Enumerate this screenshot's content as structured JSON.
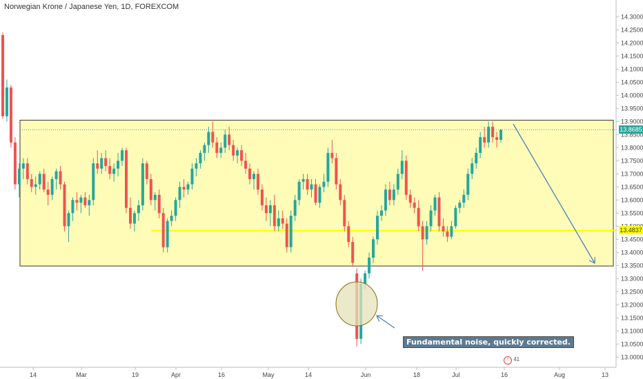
{
  "header": {
    "title": "Norwegian Krone / Japanese Yen, 1D, FOREXCOM"
  },
  "annotation": {
    "text": "Fundamental noise, quickly corrected."
  },
  "price_tags": {
    "last": "13.8685",
    "level": "13.4837"
  },
  "events": {
    "count": "41"
  },
  "colors": {
    "up": "#26a69a",
    "down": "#ef5350",
    "box_fill": "#fffcb8",
    "level_line": "#ffff00",
    "arrow": "#4a7fbf",
    "circle_fill": "#e3e2b8"
  },
  "chart_data": {
    "type": "candlestick",
    "yaxis": {
      "range": [
        12.985,
        14.335
      ],
      "ticks": [
        "14.3000",
        "14.2500",
        "14.2000",
        "14.1500",
        "14.1000",
        "14.0500",
        "14.0000",
        "13.9500",
        "13.9000",
        "13.8500",
        "13.8000",
        "13.7500",
        "13.7000",
        "13.6500",
        "13.6000",
        "13.5500",
        "13.5000",
        "13.4500",
        "13.4000",
        "13.3500",
        "13.3000",
        "13.2500",
        "13.2000",
        "13.1500",
        "13.1000",
        "13.0500",
        "13.0000"
      ]
    },
    "xaxis": {
      "ticks": [
        "14",
        "Mar",
        "19",
        "Apr",
        "16",
        "May",
        "14",
        "Jun",
        "18",
        "Jul",
        "16",
        "Aug",
        "13"
      ]
    },
    "range_box": {
      "top": 13.905,
      "bottom": 13.348
    },
    "level": 13.4837,
    "last_price": 13.8685,
    "candles": [
      [
        14.23,
        14.24,
        13.91,
        13.92
      ],
      [
        13.92,
        14.06,
        13.9,
        14.03
      ],
      [
        14.03,
        14.04,
        13.8,
        13.82
      ],
      [
        13.82,
        13.84,
        13.64,
        13.66
      ],
      [
        13.66,
        13.74,
        13.61,
        13.72
      ],
      [
        13.72,
        13.76,
        13.68,
        13.74
      ],
      [
        13.74,
        13.76,
        13.66,
        13.68
      ],
      [
        13.68,
        13.7,
        13.63,
        13.65
      ],
      [
        13.65,
        13.69,
        13.62,
        13.66
      ],
      [
        13.66,
        13.71,
        13.64,
        13.7
      ],
      [
        13.7,
        13.72,
        13.63,
        13.64
      ],
      [
        13.64,
        13.67,
        13.58,
        13.62
      ],
      [
        13.62,
        13.69,
        13.6,
        13.68
      ],
      [
        13.68,
        13.72,
        13.64,
        13.71
      ],
      [
        13.71,
        13.73,
        13.64,
        13.66
      ],
      [
        13.66,
        13.67,
        13.48,
        13.5
      ],
      [
        13.5,
        13.56,
        13.44,
        13.55
      ],
      [
        13.55,
        13.61,
        13.52,
        13.6
      ],
      [
        13.6,
        13.63,
        13.56,
        13.59
      ],
      [
        13.59,
        13.62,
        13.55,
        13.61
      ],
      [
        13.61,
        13.63,
        13.57,
        13.58
      ],
      [
        13.58,
        13.62,
        13.54,
        13.6
      ],
      [
        13.6,
        13.76,
        13.58,
        13.74
      ],
      [
        13.74,
        13.79,
        13.7,
        13.72
      ],
      [
        13.72,
        13.78,
        13.7,
        13.76
      ],
      [
        13.76,
        13.79,
        13.71,
        13.73
      ],
      [
        13.73,
        13.76,
        13.68,
        13.7
      ],
      [
        13.7,
        13.74,
        13.67,
        13.72
      ],
      [
        13.72,
        13.78,
        13.69,
        13.75
      ],
      [
        13.75,
        13.8,
        13.73,
        13.79
      ],
      [
        13.79,
        13.8,
        13.55,
        13.57
      ],
      [
        13.57,
        13.61,
        13.49,
        13.51
      ],
      [
        13.51,
        13.56,
        13.48,
        13.55
      ],
      [
        13.55,
        13.6,
        13.52,
        13.58
      ],
      [
        13.58,
        13.76,
        13.56,
        13.74
      ],
      [
        13.74,
        13.75,
        13.66,
        13.68
      ],
      [
        13.68,
        13.7,
        13.58,
        13.6
      ],
      [
        13.6,
        13.63,
        13.56,
        13.62
      ],
      [
        13.62,
        13.64,
        13.53,
        13.55
      ],
      [
        13.55,
        13.57,
        13.4,
        13.42
      ],
      [
        13.42,
        13.53,
        13.4,
        13.52
      ],
      [
        13.52,
        13.56,
        13.5,
        13.54
      ],
      [
        13.54,
        13.61,
        13.52,
        13.6
      ],
      [
        13.6,
        13.67,
        13.57,
        13.65
      ],
      [
        13.65,
        13.68,
        13.61,
        13.64
      ],
      [
        13.64,
        13.67,
        13.62,
        13.66
      ],
      [
        13.66,
        13.74,
        13.64,
        13.72
      ],
      [
        13.72,
        13.76,
        13.69,
        13.74
      ],
      [
        13.74,
        13.79,
        13.72,
        13.78
      ],
      [
        13.78,
        13.82,
        13.75,
        13.81
      ],
      [
        13.81,
        13.88,
        13.78,
        13.86
      ],
      [
        13.86,
        13.9,
        13.8,
        13.82
      ],
      [
        13.82,
        13.84,
        13.76,
        13.78
      ],
      [
        13.78,
        13.82,
        13.76,
        13.8
      ],
      [
        13.8,
        13.87,
        13.78,
        13.85
      ],
      [
        13.85,
        13.88,
        13.79,
        13.81
      ],
      [
        13.81,
        13.83,
        13.75,
        13.77
      ],
      [
        13.77,
        13.8,
        13.74,
        13.79
      ],
      [
        13.79,
        13.81,
        13.73,
        13.75
      ],
      [
        13.75,
        13.78,
        13.7,
        13.72
      ],
      [
        13.72,
        13.74,
        13.66,
        13.68
      ],
      [
        13.68,
        13.71,
        13.64,
        13.7
      ],
      [
        13.7,
        13.72,
        13.62,
        13.64
      ],
      [
        13.64,
        13.66,
        13.56,
        13.58
      ],
      [
        13.58,
        13.61,
        13.52,
        13.55
      ],
      [
        13.55,
        13.6,
        13.5,
        13.58
      ],
      [
        13.58,
        13.62,
        13.48,
        13.5
      ],
      [
        13.5,
        13.56,
        13.48,
        13.53
      ],
      [
        13.53,
        13.56,
        13.49,
        13.51
      ],
      [
        13.51,
        13.53,
        13.4,
        13.42
      ],
      [
        13.42,
        13.56,
        13.4,
        13.54
      ],
      [
        13.54,
        13.62,
        13.52,
        13.6
      ],
      [
        13.6,
        13.68,
        13.58,
        13.67
      ],
      [
        13.67,
        13.7,
        13.64,
        13.68
      ],
      [
        13.68,
        13.7,
        13.62,
        13.64
      ],
      [
        13.64,
        13.68,
        13.61,
        13.66
      ],
      [
        13.66,
        13.68,
        13.58,
        13.59
      ],
      [
        13.59,
        13.66,
        13.57,
        13.65
      ],
      [
        13.65,
        13.7,
        13.63,
        13.67
      ],
      [
        13.67,
        13.8,
        13.65,
        13.78
      ],
      [
        13.78,
        13.83,
        13.74,
        13.76
      ],
      [
        13.76,
        13.78,
        13.64,
        13.66
      ],
      [
        13.66,
        13.68,
        13.58,
        13.6
      ],
      [
        13.6,
        13.62,
        13.48,
        13.5
      ],
      [
        13.5,
        13.52,
        13.42,
        13.44
      ],
      [
        13.44,
        13.46,
        13.35,
        13.36
      ],
      [
        13.32,
        13.34,
        13.04,
        13.07
      ],
      [
        13.07,
        13.3,
        13.05,
        13.28
      ],
      [
        13.28,
        13.33,
        13.26,
        13.32
      ],
      [
        13.32,
        13.4,
        13.3,
        13.38
      ],
      [
        13.38,
        13.46,
        13.36,
        13.45
      ],
      [
        13.45,
        13.56,
        13.43,
        13.54
      ],
      [
        13.54,
        13.58,
        13.52,
        13.56
      ],
      [
        13.56,
        13.66,
        13.54,
        13.64
      ],
      [
        13.64,
        13.67,
        13.58,
        13.6
      ],
      [
        13.6,
        13.66,
        13.58,
        13.64
      ],
      [
        13.64,
        13.72,
        13.62,
        13.7
      ],
      [
        13.7,
        13.79,
        13.68,
        13.75
      ],
      [
        13.75,
        13.77,
        13.6,
        13.62
      ],
      [
        13.62,
        13.64,
        13.57,
        13.59
      ],
      [
        13.59,
        13.61,
        13.55,
        13.57
      ],
      [
        13.57,
        13.6,
        13.48,
        13.5
      ],
      [
        13.5,
        13.52,
        13.33,
        13.45
      ],
      [
        13.45,
        13.52,
        13.43,
        13.5
      ],
      [
        13.5,
        13.58,
        13.48,
        13.56
      ],
      [
        13.56,
        13.62,
        13.54,
        13.61
      ],
      [
        13.61,
        13.63,
        13.48,
        13.5
      ],
      [
        13.5,
        13.53,
        13.46,
        13.48
      ],
      [
        13.48,
        13.5,
        13.44,
        13.46
      ],
      [
        13.46,
        13.52,
        13.45,
        13.5
      ],
      [
        13.5,
        13.58,
        13.49,
        13.57
      ],
      [
        13.57,
        13.6,
        13.55,
        13.59
      ],
      [
        13.59,
        13.64,
        13.57,
        13.62
      ],
      [
        13.62,
        13.72,
        13.6,
        13.7
      ],
      [
        13.7,
        13.76,
        13.68,
        13.74
      ],
      [
        13.74,
        13.8,
        13.72,
        13.78
      ],
      [
        13.78,
        13.86,
        13.76,
        13.84
      ],
      [
        13.84,
        13.88,
        13.8,
        13.82
      ],
      [
        13.82,
        13.9,
        13.8,
        13.88
      ],
      [
        13.88,
        13.9,
        13.82,
        13.84
      ],
      [
        13.84,
        13.86,
        13.8,
        13.83
      ],
      [
        13.83,
        13.87,
        13.82,
        13.8685
      ]
    ]
  }
}
